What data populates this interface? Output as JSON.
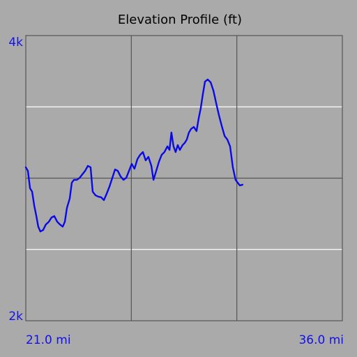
{
  "chart_data": {
    "type": "line",
    "title": "Elevation Profile (ft)",
    "xlim": [
      21,
      36
    ],
    "ylim": [
      2000,
      4000
    ],
    "xticks": [
      {
        "value": 21,
        "label": "21.0 mi"
      },
      {
        "value": 36,
        "label": "36.0 mi"
      }
    ],
    "yticks": [
      {
        "value": 2000,
        "label": "2k"
      },
      {
        "value": 4000,
        "label": "4k"
      }
    ],
    "xgrid": [
      26,
      31
    ],
    "xgrid_color": "#555555",
    "ygrid": [
      2500,
      3000,
      3500
    ],
    "ygrid_colors": [
      "#ffffff",
      "#555555",
      "#ffffff"
    ],
    "series": [
      {
        "name": "Elevation",
        "color": "#0a0ae6",
        "x": [
          21.0,
          21.1,
          21.2,
          21.3,
          21.4,
          21.5,
          21.59,
          21.69,
          21.82,
          21.95,
          22.09,
          22.22,
          22.35,
          22.49,
          22.62,
          22.75,
          22.85,
          22.95,
          23.08,
          23.18,
          23.28,
          23.42,
          23.55,
          23.68,
          23.81,
          23.94,
          24.07,
          24.17,
          24.3,
          24.44,
          24.57,
          24.7,
          24.83,
          24.96,
          25.1,
          25.23,
          25.36,
          25.49,
          25.63,
          25.76,
          25.89,
          26.02,
          26.15,
          26.29,
          26.42,
          26.55,
          26.68,
          26.81,
          26.95,
          27.05,
          27.18,
          27.31,
          27.44,
          27.57,
          27.71,
          27.81,
          27.9,
          28.0,
          28.1,
          28.2,
          28.3,
          28.43,
          28.53,
          28.63,
          28.73,
          28.83,
          28.96,
          29.09,
          29.19,
          29.29,
          29.39,
          29.49,
          29.62,
          29.76,
          29.89,
          30.02,
          30.15,
          30.28,
          30.42,
          30.55,
          30.68,
          30.81,
          30.94,
          31.04,
          31.14,
          31.27
        ],
        "values": [
          3076,
          3051,
          2929,
          2905,
          2807,
          2734,
          2660,
          2626,
          2636,
          2675,
          2694,
          2724,
          2734,
          2694,
          2675,
          2660,
          2694,
          2792,
          2856,
          2968,
          2988,
          2988,
          3002,
          3027,
          3051,
          3086,
          3076,
          2905,
          2880,
          2870,
          2866,
          2846,
          2890,
          2939,
          3002,
          3061,
          3051,
          3012,
          2988,
          3002,
          3051,
          3100,
          3066,
          3134,
          3164,
          3183,
          3125,
          3149,
          3086,
          2988,
          3051,
          3115,
          3164,
          3183,
          3223,
          3198,
          3320,
          3223,
          3183,
          3232,
          3198,
          3232,
          3247,
          3271,
          3320,
          3345,
          3359,
          3330,
          3418,
          3491,
          3589,
          3677,
          3692,
          3672,
          3614,
          3526,
          3443,
          3369,
          3296,
          3271,
          3223,
          3076,
          2988,
          2968,
          2949,
          2954
        ]
      }
    ]
  }
}
